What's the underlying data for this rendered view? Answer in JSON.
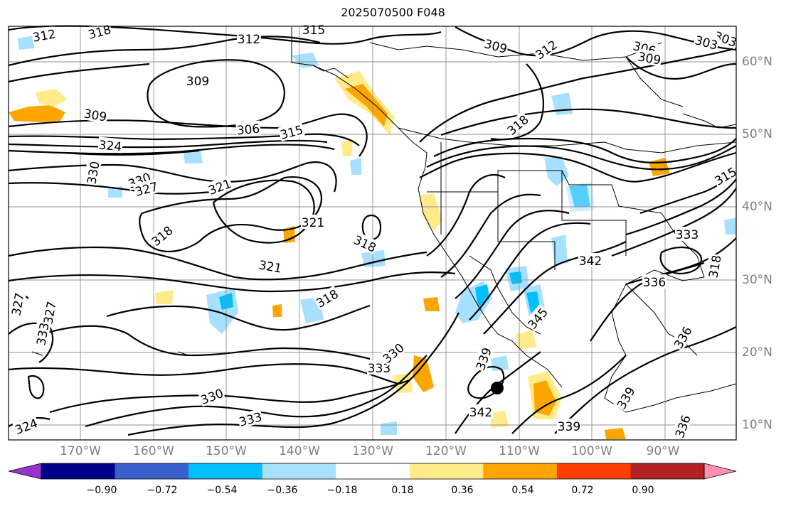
{
  "title": "2025070500 F048",
  "lon_labels": [
    "170°W",
    "160°W",
    "150°W",
    "140°W",
    "130°W",
    "120°W",
    "110°W",
    "100°W",
    "90°W"
  ],
  "lat_labels": [
    "60°N",
    "50°N",
    "40°N",
    "30°N",
    "20°N",
    "10°N"
  ],
  "colorbar": {
    "ticks": [
      "−0.90",
      "−0.72",
      "−0.54",
      "−0.36",
      "−0.18",
      "0.18",
      "0.36",
      "0.54",
      "0.72",
      "0.90"
    ],
    "colors": [
      "#9932cc",
      "#00008b",
      "#3a5fcd",
      "#00bfff",
      "#a8e0ff",
      "#ffffff",
      "#ffeb8a",
      "#ffa500",
      "#ff3d00",
      "#b22222",
      "#ff8fb0"
    ]
  },
  "contour_labels": [
    "312",
    "318",
    "312",
    "315",
    "309",
    "312",
    "306",
    "309",
    "303",
    "309",
    "303",
    "306",
    "315",
    "318",
    "309",
    "324",
    "330",
    "330",
    "327",
    "321",
    "321",
    "318",
    "318",
    "321",
    "318",
    "327",
    "327",
    "333",
    "333",
    "330",
    "339",
    "345",
    "342",
    "333",
    "336",
    "339",
    "342",
    "339",
    "336",
    "336",
    "330",
    "318",
    "333",
    "324",
    "315"
  ]
}
